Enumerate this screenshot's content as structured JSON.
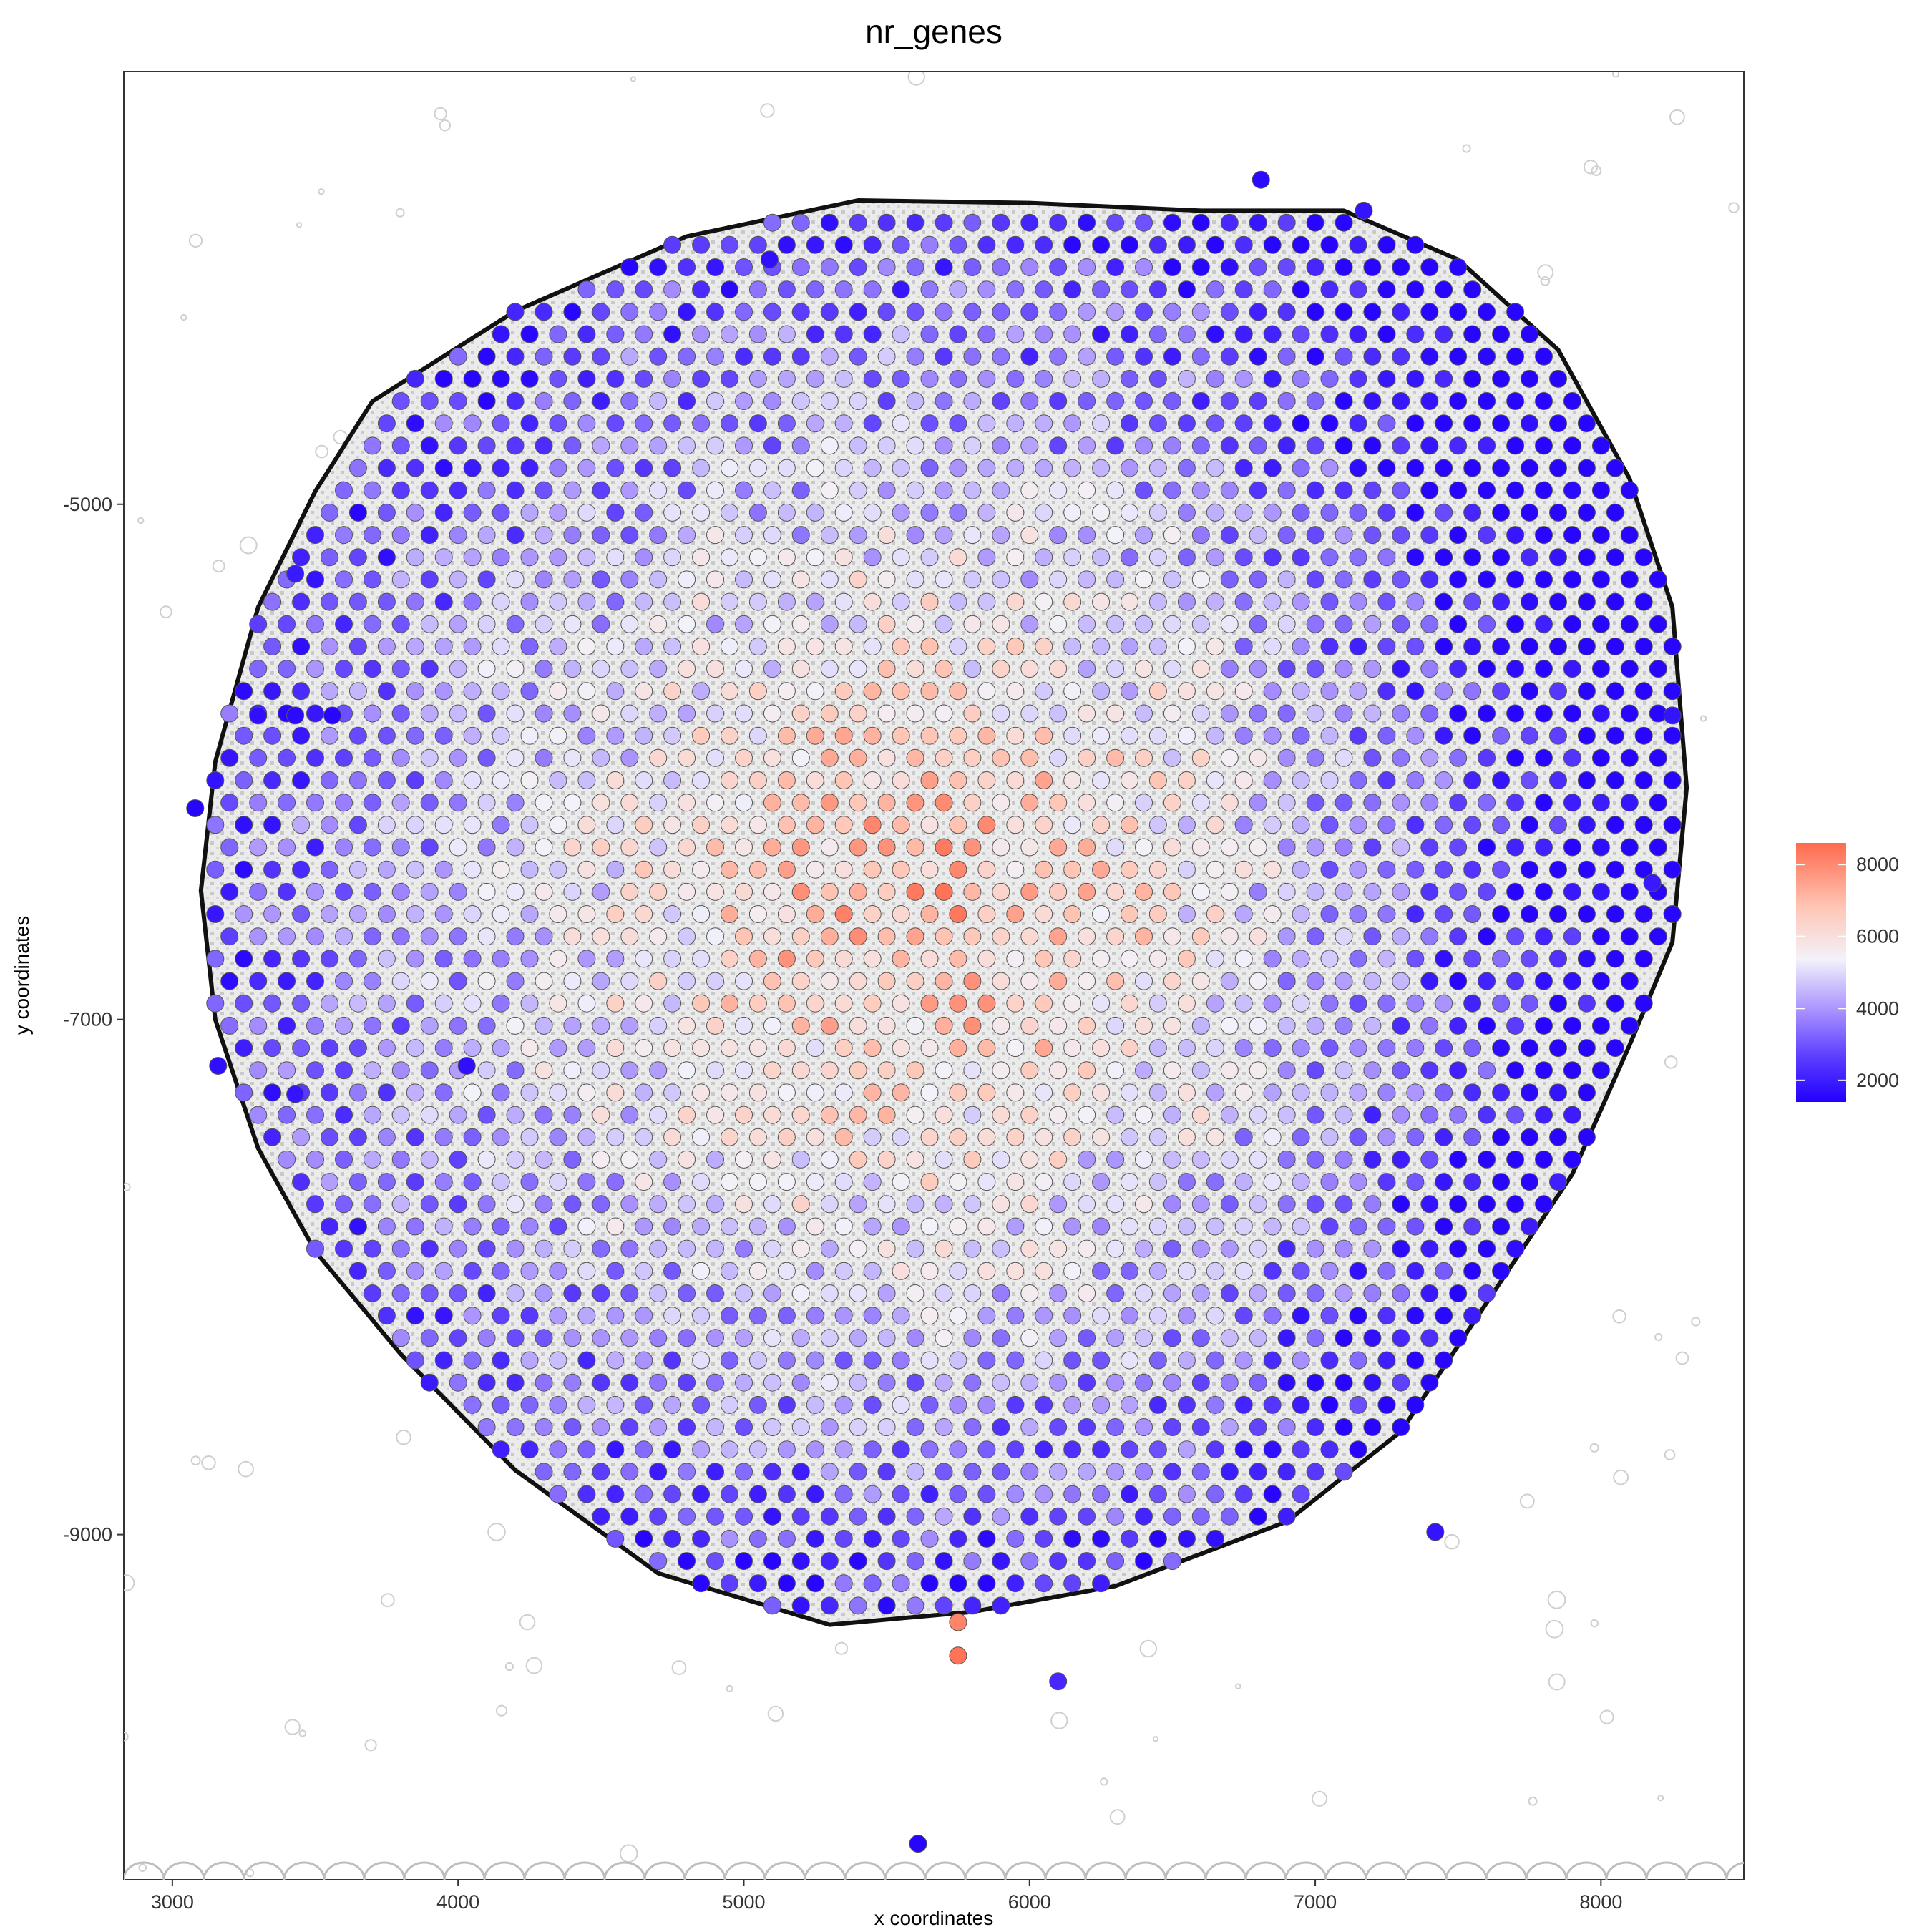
{
  "chart_data": {
    "type": "scatter",
    "title": "nr_genes",
    "xlabel": "x coordinates",
    "ylabel": "y coordinates",
    "xlim": [
      2830,
      8500
    ],
    "ylim": [
      -10340,
      -3320
    ],
    "x_ticks": [
      3000,
      4000,
      5000,
      6000,
      7000,
      8000
    ],
    "y_ticks": [
      -5000,
      -7000,
      -9000
    ],
    "x_tick_labels": [
      "3000",
      "4000",
      "5000",
      "6000",
      "7000",
      "8000"
    ],
    "y_tick_labels": [
      "-5000",
      "-7000",
      "-9000"
    ],
    "grid": false,
    "legend": {
      "placement": "right",
      "type": "colorbar",
      "range": [
        1400,
        8600
      ],
      "ticks": [
        2000,
        4000,
        6000,
        8000
      ],
      "tick_labels": [
        "2000",
        "4000",
        "6000",
        "8000"
      ],
      "colors": {
        "low": "#2200ff",
        "mid": "#f2f2fa",
        "high": "#ff6a4d"
      }
    },
    "tissue_outline": [
      [
        3700,
        -4600
      ],
      [
        4200,
        -4250
      ],
      [
        4800,
        -3960
      ],
      [
        5400,
        -3820
      ],
      [
        6000,
        -3830
      ],
      [
        6600,
        -3860
      ],
      [
        7100,
        -3860
      ],
      [
        7500,
        -4050
      ],
      [
        7850,
        -4400
      ],
      [
        8100,
        -4900
      ],
      [
        8250,
        -5400
      ],
      [
        8300,
        -6100
      ],
      [
        8250,
        -6700
      ],
      [
        8100,
        -7100
      ],
      [
        7900,
        -7600
      ],
      [
        7600,
        -8100
      ],
      [
        7300,
        -8600
      ],
      [
        6900,
        -8950
      ],
      [
        6300,
        -9200
      ],
      [
        5800,
        -9300
      ],
      [
        5300,
        -9350
      ],
      [
        4700,
        -9150
      ],
      [
        4200,
        -8750
      ],
      [
        3800,
        -8300
      ],
      [
        3500,
        -7900
      ],
      [
        3300,
        -7500
      ],
      [
        3150,
        -7000
      ],
      [
        3100,
        -6500
      ],
      [
        3150,
        -6000
      ],
      [
        3300,
        -5400
      ],
      [
        3500,
        -4950
      ]
    ],
    "points": [
      {
        "x": 6810,
        "y": -3740,
        "value": 1600
      },
      {
        "x": 7170,
        "y": -3860,
        "value": 1800
      },
      {
        "x": 5090,
        "y": -4050,
        "value": 1700
      },
      {
        "x": 3430,
        "y": -5270,
        "value": 1900
      },
      {
        "x": 3300,
        "y": -5820,
        "value": 1700
      },
      {
        "x": 3430,
        "y": -5820,
        "value": 1600
      },
      {
        "x": 3560,
        "y": -5820,
        "value": 1500
      },
      {
        "x": 3080,
        "y": -6180,
        "value": 1500
      },
      {
        "x": 3160,
        "y": -7180,
        "value": 1700
      },
      {
        "x": 3430,
        "y": -7290,
        "value": 1800
      },
      {
        "x": 4030,
        "y": -7180,
        "value": 1700
      },
      {
        "x": 8250,
        "y": -5820,
        "value": 1800
      },
      {
        "x": 8180,
        "y": -6470,
        "value": 1900
      },
      {
        "x": 7420,
        "y": -8990,
        "value": 1800
      },
      {
        "x": 6100,
        "y": -9570,
        "value": 2200
      },
      {
        "x": 5610,
        "y": -10200,
        "value": 1500
      },
      {
        "x": 5750,
        "y": -9470,
        "value": 8400
      },
      {
        "x": 5750,
        "y": -9340,
        "value": 8100
      }
    ]
  }
}
